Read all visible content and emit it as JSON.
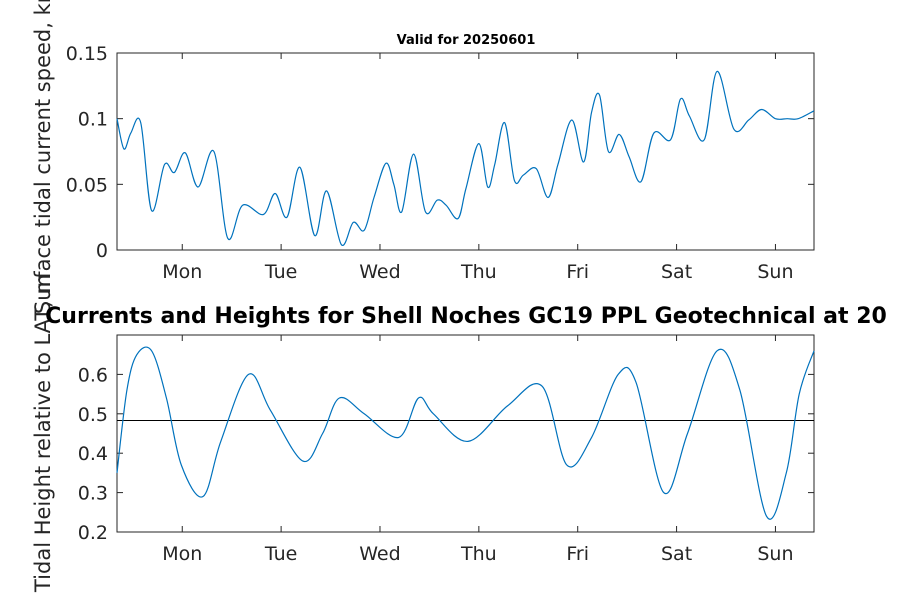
{
  "colors": {
    "series": "#0072BD",
    "axis": "#262626",
    "reference_line": "#000000"
  },
  "chart_data": [
    {
      "type": "line",
      "title": "Valid for 20250601",
      "ylabel": "Surface tidal current speed, kn",
      "xlim": [
        0,
        7.05
      ],
      "ylim": [
        0,
        0.15
      ],
      "yticks": [
        0,
        0.05,
        0.1,
        0.15
      ],
      "ytick_labels": [
        "0",
        "0.05",
        "0.1",
        "0.15"
      ],
      "xticks": [
        0.66,
        1.66,
        2.66,
        3.66,
        4.66,
        5.66,
        6.66
      ],
      "xtick_labels": [
        "Mon",
        "Tue",
        "Wed",
        "Thu",
        "Fri",
        "Sat",
        "Sun"
      ],
      "grid": false,
      "series": [
        {
          "x": [
            0,
            0.07,
            0.14,
            0.24,
            0.35,
            0.48,
            0.58,
            0.69,
            0.82,
            0.98,
            1.12,
            1.27,
            1.48,
            1.6,
            1.72,
            1.85,
            2.0,
            2.12,
            2.27,
            2.39,
            2.5,
            2.6,
            2.72,
            2.8,
            2.88,
            3.0,
            3.12,
            3.24,
            3.33,
            3.45,
            3.53,
            3.66,
            3.75,
            3.82,
            3.92,
            4.02,
            4.11,
            4.24,
            4.36,
            4.46,
            4.6,
            4.72,
            4.8,
            4.88,
            4.97,
            5.08,
            5.18,
            5.3,
            5.43,
            5.6,
            5.7,
            5.79,
            5.94,
            6.07,
            6.24,
            6.39,
            6.52,
            6.66,
            6.78,
            6.89,
            7.05
          ],
          "values": [
            0.1,
            0.077,
            0.089,
            0.097,
            0.03,
            0.065,
            0.059,
            0.074,
            0.048,
            0.075,
            0.009,
            0.034,
            0.027,
            0.043,
            0.025,
            0.063,
            0.011,
            0.045,
            0.004,
            0.021,
            0.015,
            0.04,
            0.066,
            0.05,
            0.029,
            0.073,
            0.029,
            0.038,
            0.034,
            0.024,
            0.047,
            0.081,
            0.048,
            0.065,
            0.097,
            0.053,
            0.057,
            0.062,
            0.04,
            0.065,
            0.099,
            0.067,
            0.105,
            0.118,
            0.075,
            0.088,
            0.071,
            0.052,
            0.089,
            0.084,
            0.115,
            0.102,
            0.084,
            0.136,
            0.092,
            0.099,
            0.107,
            0.1,
            0.1,
            0.1,
            0.106
          ]
        }
      ]
    },
    {
      "type": "line",
      "title": "Currents and Heights for Shell Noches   GC19 PPL  Geotechnical at 20",
      "ylabel": "Tidal Height relative to LAT, m",
      "xlim": [
        0,
        7.05
      ],
      "ylim": [
        0.2,
        0.7
      ],
      "yticks": [
        0.2,
        0.3,
        0.4,
        0.5,
        0.6
      ],
      "ytick_labels": [
        "0.2",
        "0.3",
        "0.4",
        "0.5",
        "0.6"
      ],
      "xticks": [
        0.66,
        1.66,
        2.66,
        3.66,
        4.66,
        5.66,
        6.66
      ],
      "xtick_labels": [
        "Mon",
        "Tue",
        "Wed",
        "Thu",
        "Fri",
        "Sat",
        "Sun"
      ],
      "reference_line": 0.483,
      "grid": false,
      "series": [
        {
          "x": [
            0,
            0.1,
            0.2,
            0.35,
            0.5,
            0.65,
            0.87,
            1.05,
            1.33,
            1.55,
            1.88,
            2.08,
            2.25,
            2.5,
            2.85,
            3.05,
            3.2,
            3.55,
            3.95,
            4.3,
            4.55,
            4.8,
            5.07,
            5.25,
            5.53,
            5.77,
            6.07,
            6.3,
            6.57,
            6.77,
            6.9,
            7.05
          ],
          "values": [
            0.35,
            0.56,
            0.65,
            0.66,
            0.54,
            0.37,
            0.29,
            0.43,
            0.6,
            0.51,
            0.38,
            0.45,
            0.54,
            0.5,
            0.44,
            0.54,
            0.5,
            0.43,
            0.52,
            0.57,
            0.37,
            0.44,
            0.6,
            0.58,
            0.3,
            0.45,
            0.66,
            0.56,
            0.24,
            0.35,
            0.55,
            0.66
          ]
        }
      ]
    }
  ]
}
